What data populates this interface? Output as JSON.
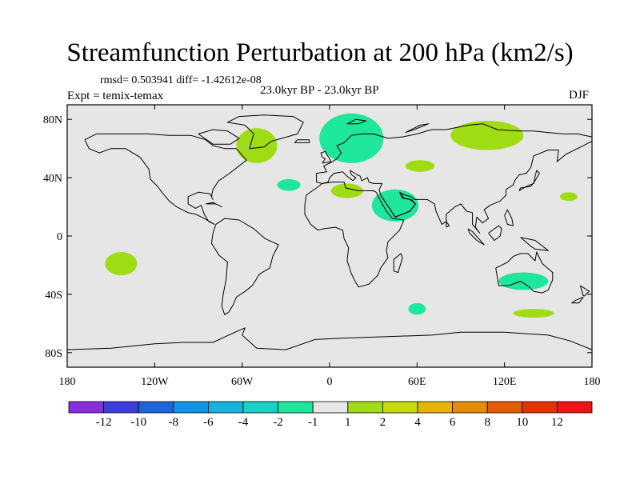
{
  "chart_data": {
    "type": "contour-map",
    "title": "Streamfunction Perturbation at 200 hPa (km2/s)",
    "stats_label": "rmsd= 0.503941 diff= -1.42612e-08",
    "experiment_label": "Expt = temix-temax",
    "period_label": "23.0kyr BP - 23.0kyr BP",
    "season_label": "DJF",
    "lon_range": [
      -180,
      180
    ],
    "lat_range": [
      -90,
      90
    ],
    "x_ticks": [
      {
        "lon": -180,
        "label": "180"
      },
      {
        "lon": -120,
        "label": "120W"
      },
      {
        "lon": -60,
        "label": "60W"
      },
      {
        "lon": 0,
        "label": "0"
      },
      {
        "lon": 60,
        "label": "60E"
      },
      {
        "lon": 120,
        "label": "120E"
      },
      {
        "lon": 180,
        "label": "180"
      }
    ],
    "y_ticks": [
      {
        "lat": 80,
        "label": "80N"
      },
      {
        "lat": 40,
        "label": "40N"
      },
      {
        "lat": 0,
        "label": "0"
      },
      {
        "lat": -40,
        "label": "40S"
      },
      {
        "lat": -80,
        "label": "80S"
      }
    ],
    "colorbar": {
      "levels": [
        -12,
        -10,
        -8,
        -6,
        -4,
        -2,
        -1,
        1,
        2,
        4,
        6,
        8,
        10,
        12
      ],
      "labels": [
        "-12",
        "-10",
        "-8",
        "-6",
        "-4",
        "-2",
        "-1",
        "1",
        "2",
        "4",
        "6",
        "8",
        "10",
        "12"
      ],
      "colors": [
        "#8a2be2",
        "#3c3ce0",
        "#1e64dc",
        "#0a96e6",
        "#14b4dc",
        "#16d2c8",
        "#1ee69b",
        "#e6e6e6",
        "#a0dc14",
        "#c8dc0a",
        "#e6b400",
        "#e68c00",
        "#e65a00",
        "#e63200",
        "#f01414"
      ]
    },
    "anomalies": [
      {
        "name": "north-atlantic",
        "lon": -50,
        "lat": 62,
        "rx": 14,
        "ry": 12,
        "value": 1.5
      },
      {
        "name": "northern-europe",
        "lon": 15,
        "lat": 67,
        "rx": 22,
        "ry": 17,
        "value": -1.5
      },
      {
        "name": "north-asia",
        "lon": 108,
        "lat": 69,
        "rx": 25,
        "ry": 10,
        "value": 1.5
      },
      {
        "name": "central-asia",
        "lon": 62,
        "lat": 48,
        "rx": 10,
        "ry": 4,
        "value": 1.5
      },
      {
        "name": "mid-atlantic",
        "lon": -28,
        "lat": 35,
        "rx": 8,
        "ry": 4,
        "value": -1.5
      },
      {
        "name": "mediterranean",
        "lon": 12,
        "lat": 31,
        "rx": 11,
        "ry": 5,
        "value": 1.5
      },
      {
        "name": "arabia-africa",
        "lon": 45,
        "lat": 21,
        "rx": 16,
        "ry": 11,
        "value": -1.5
      },
      {
        "name": "east-pacific-north",
        "lon": 164,
        "lat": 27,
        "rx": 6,
        "ry": 3,
        "value": 1.5
      },
      {
        "name": "east-pacific-south",
        "lon": -143,
        "lat": -19,
        "rx": 11,
        "ry": 8,
        "value": 1.5
      },
      {
        "name": "australia",
        "lon": 133,
        "lat": -31,
        "rx": 17,
        "ry": 6,
        "value": -1.5
      },
      {
        "name": "indian-ocean-south",
        "lon": 60,
        "lat": -50,
        "rx": 6,
        "ry": 4,
        "value": -1.5
      },
      {
        "name": "south-of-australia",
        "lon": 140,
        "lat": -53,
        "rx": 14,
        "ry": 3,
        "value": 1.5
      }
    ]
  }
}
